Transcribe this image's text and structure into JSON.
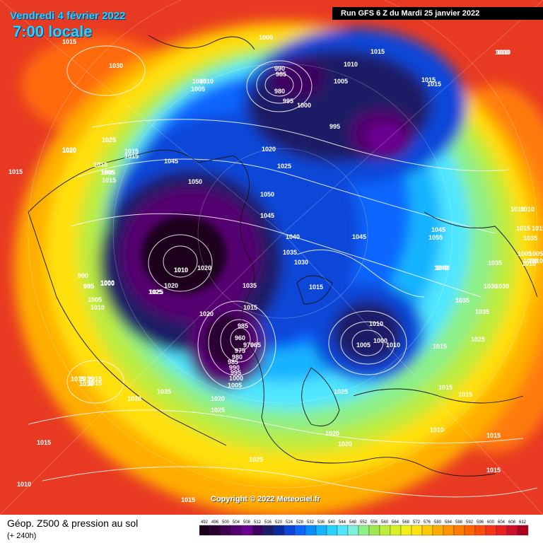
{
  "header": {
    "date": "Vendredi 4 février 2022",
    "time": "7:00 locale",
    "run": "Run GFS 6 Z du Mardi 25 janvier 2022"
  },
  "copyright": "Copyright © 2022 Meteociel.fr",
  "footer": {
    "title": "Géop. Z500 & pression au sol",
    "subtitle": "(+ 240h)"
  },
  "legend": {
    "values": [
      "492",
      "496",
      "500",
      "504",
      "508",
      "512",
      "516",
      "520",
      "524",
      "528",
      "532",
      "536",
      "540",
      "544",
      "548",
      "552",
      "556",
      "560",
      "564",
      "568",
      "572",
      "576",
      "580",
      "584",
      "588",
      "592",
      "596",
      "600",
      "604",
      "608",
      "612"
    ],
    "colors": [
      "#1a001a",
      "#2b0030",
      "#400050",
      "#550070",
      "#6a0090",
      "#3d0060",
      "#1c1c66",
      "#0a2a9e",
      "#0b46d8",
      "#0a66ff",
      "#0a8cff",
      "#14b4ff",
      "#28d2ff",
      "#50e6ff",
      "#7cf0d8",
      "#8cf088",
      "#9ee850",
      "#bcec3c",
      "#d8f028",
      "#f0f018",
      "#ffe010",
      "#ffc800",
      "#ffac00",
      "#ff9400",
      "#ff7c00",
      "#ff6400",
      "#ff4c0c",
      "#f83418",
      "#e82020",
      "#d0102a",
      "#b00020"
    ]
  },
  "pressure_labels": [
    {
      "id": "1015a",
      "text": "1015"
    },
    {
      "id": "1030a",
      "text": "1030"
    },
    {
      "id": "1000a",
      "text": "1000"
    },
    {
      "id": "990a",
      "text": "990"
    },
    {
      "id": "985a",
      "text": "985"
    },
    {
      "id": "980a",
      "text": "980"
    },
    {
      "id": "995a",
      "text": "995"
    },
    {
      "id": "1000b",
      "text": "1000"
    },
    {
      "id": "1010a",
      "text": "1010"
    },
    {
      "id": "1005a",
      "text": "1005"
    },
    {
      "id": "1015b",
      "text": "1015"
    },
    {
      "id": "1010b",
      "text": "1010"
    },
    {
      "id": "1005b",
      "text": "1005"
    },
    {
      "id": "995b",
      "text": "995"
    },
    {
      "id": "1015c",
      "text": "1015"
    },
    {
      "id": "1015d",
      "text": "1015"
    },
    {
      "id": "1010c",
      "text": "1010"
    },
    {
      "id": "1025a",
      "text": "1025"
    },
    {
      "id": "1020a",
      "text": "1020"
    },
    {
      "id": "1015e",
      "text": "1015"
    },
    {
      "id": "1010d",
      "text": "1010"
    },
    {
      "id": "1005c",
      "text": "1005"
    },
    {
      "id": "1015f",
      "text": "1015"
    },
    {
      "id": "1015g",
      "text": "1015"
    },
    {
      "id": "1045a",
      "text": "1045"
    },
    {
      "id": "1050a",
      "text": "1050"
    },
    {
      "id": "1020b",
      "text": "1020"
    },
    {
      "id": "1025b",
      "text": "1025"
    },
    {
      "id": "1050b",
      "text": "1050"
    },
    {
      "id": "1045b",
      "text": "1045"
    },
    {
      "id": "1040a",
      "text": "1040"
    },
    {
      "id": "1045c",
      "text": "1045"
    },
    {
      "id": "1035a",
      "text": "1035"
    },
    {
      "id": "1030b",
      "text": "1030"
    },
    {
      "id": "1010e",
      "text": "1010"
    },
    {
      "id": "1020c",
      "text": "1020"
    },
    {
      "id": "1020d",
      "text": "1020"
    },
    {
      "id": "1025c",
      "text": "1025"
    },
    {
      "id": "990b",
      "text": "990"
    },
    {
      "id": "995c",
      "text": "995"
    },
    {
      "id": "1000c",
      "text": "1000"
    },
    {
      "id": "1005d",
      "text": "1005"
    },
    {
      "id": "1010f",
      "text": "1010"
    },
    {
      "id": "1010g",
      "text": "1010"
    },
    {
      "id": "1035b",
      "text": "1035"
    },
    {
      "id": "1015h",
      "text": "1015"
    },
    {
      "id": "1020e",
      "text": "1020"
    },
    {
      "id": "985b",
      "text": "985"
    },
    {
      "id": "960a",
      "text": "960"
    },
    {
      "id": "970a",
      "text": "970"
    },
    {
      "id": "965a",
      "text": "965"
    },
    {
      "id": "975a",
      "text": "975"
    },
    {
      "id": "980b",
      "text": "980"
    },
    {
      "id": "985c",
      "text": "985"
    },
    {
      "id": "990c",
      "text": "990"
    },
    {
      "id": "995d",
      "text": "995"
    },
    {
      "id": "1000d",
      "text": "1000"
    },
    {
      "id": "1005e",
      "text": "1005"
    },
    {
      "id": "1015i",
      "text": "1015"
    },
    {
      "id": "1010h",
      "text": "1010"
    },
    {
      "id": "1005f",
      "text": "1005"
    },
    {
      "id": "1000e",
      "text": "1000"
    },
    {
      "id": "1010i",
      "text": "1010"
    },
    {
      "id": "1015j",
      "text": "1015"
    },
    {
      "id": "1025d",
      "text": "1025"
    },
    {
      "id": "1015k",
      "text": "1015"
    },
    {
      "id": "1010j",
      "text": "1010"
    },
    {
      "id": "1030c",
      "text": "1030"
    },
    {
      "id": "1035c",
      "text": "1035"
    },
    {
      "id": "1030d",
      "text": "1030"
    },
    {
      "id": "1035d",
      "text": "1035"
    },
    {
      "id": "1035e",
      "text": "1035"
    },
    {
      "id": "1025e",
      "text": "1025"
    },
    {
      "id": "1015l",
      "text": "1015"
    },
    {
      "id": "1015m",
      "text": "1015"
    },
    {
      "id": "1015n",
      "text": "1015"
    },
    {
      "id": "1010k",
      "text": "1010"
    },
    {
      "id": "1045d",
      "text": "1045"
    },
    {
      "id": "1055a",
      "text": "1055"
    },
    {
      "id": "1040b",
      "text": "1040"
    },
    {
      "id": "1035f",
      "text": "1035"
    },
    {
      "id": "1030e",
      "text": "1030"
    },
    {
      "id": "1015o",
      "text": "1015"
    },
    {
      "id": "1010l",
      "text": "1010"
    },
    {
      "id": "1005g",
      "text": "1005"
    },
    {
      "id": "1010m",
      "text": "1010"
    },
    {
      "id": "1010n",
      "text": "1010"
    },
    {
      "id": "1015p",
      "text": "1015"
    },
    {
      "id": "1015q",
      "text": "1015"
    },
    {
      "id": "1010o",
      "text": "1010"
    },
    {
      "id": "1005h",
      "text": "1005"
    },
    {
      "id": "1010p",
      "text": "1010"
    },
    {
      "id": "1015r",
      "text": "1015"
    },
    {
      "id": "1015s",
      "text": "1015"
    },
    {
      "id": "1019a",
      "text": "1019"
    },
    {
      "id": "1035g",
      "text": "1035"
    },
    {
      "id": "1030f",
      "text": "1030"
    },
    {
      "id": "1020f",
      "text": "1020"
    },
    {
      "id": "1025f",
      "text": "1025"
    },
    {
      "id": "1015t",
      "text": "1015"
    },
    {
      "id": "1010q",
      "text": "1010"
    },
    {
      "id": "1015u",
      "text": "1015"
    },
    {
      "id": "1025g",
      "text": "1025"
    },
    {
      "id": "1020g",
      "text": "1020"
    },
    {
      "id": "1020h",
      "text": "1020"
    },
    {
      "id": "1025h",
      "text": "1025"
    },
    {
      "id": "1010r",
      "text": "1010"
    },
    {
      "id": "1015v",
      "text": "1015"
    },
    {
      "id": "1015w",
      "text": "1015"
    },
    {
      "id": "1005i",
      "text": "1005"
    },
    {
      "id": "995e",
      "text": "995"
    },
    {
      "id": "1025i",
      "text": "1025"
    },
    {
      "id": "1000f",
      "text": "1000"
    },
    {
      "id": "1010s",
      "text": "1010"
    },
    {
      "id": "1020i",
      "text": "1020"
    },
    {
      "id": "1005j",
      "text": "1005"
    },
    {
      "id": "1040c",
      "text": "1040"
    },
    {
      "id": "1035h",
      "text": "1035"
    }
  ]
}
